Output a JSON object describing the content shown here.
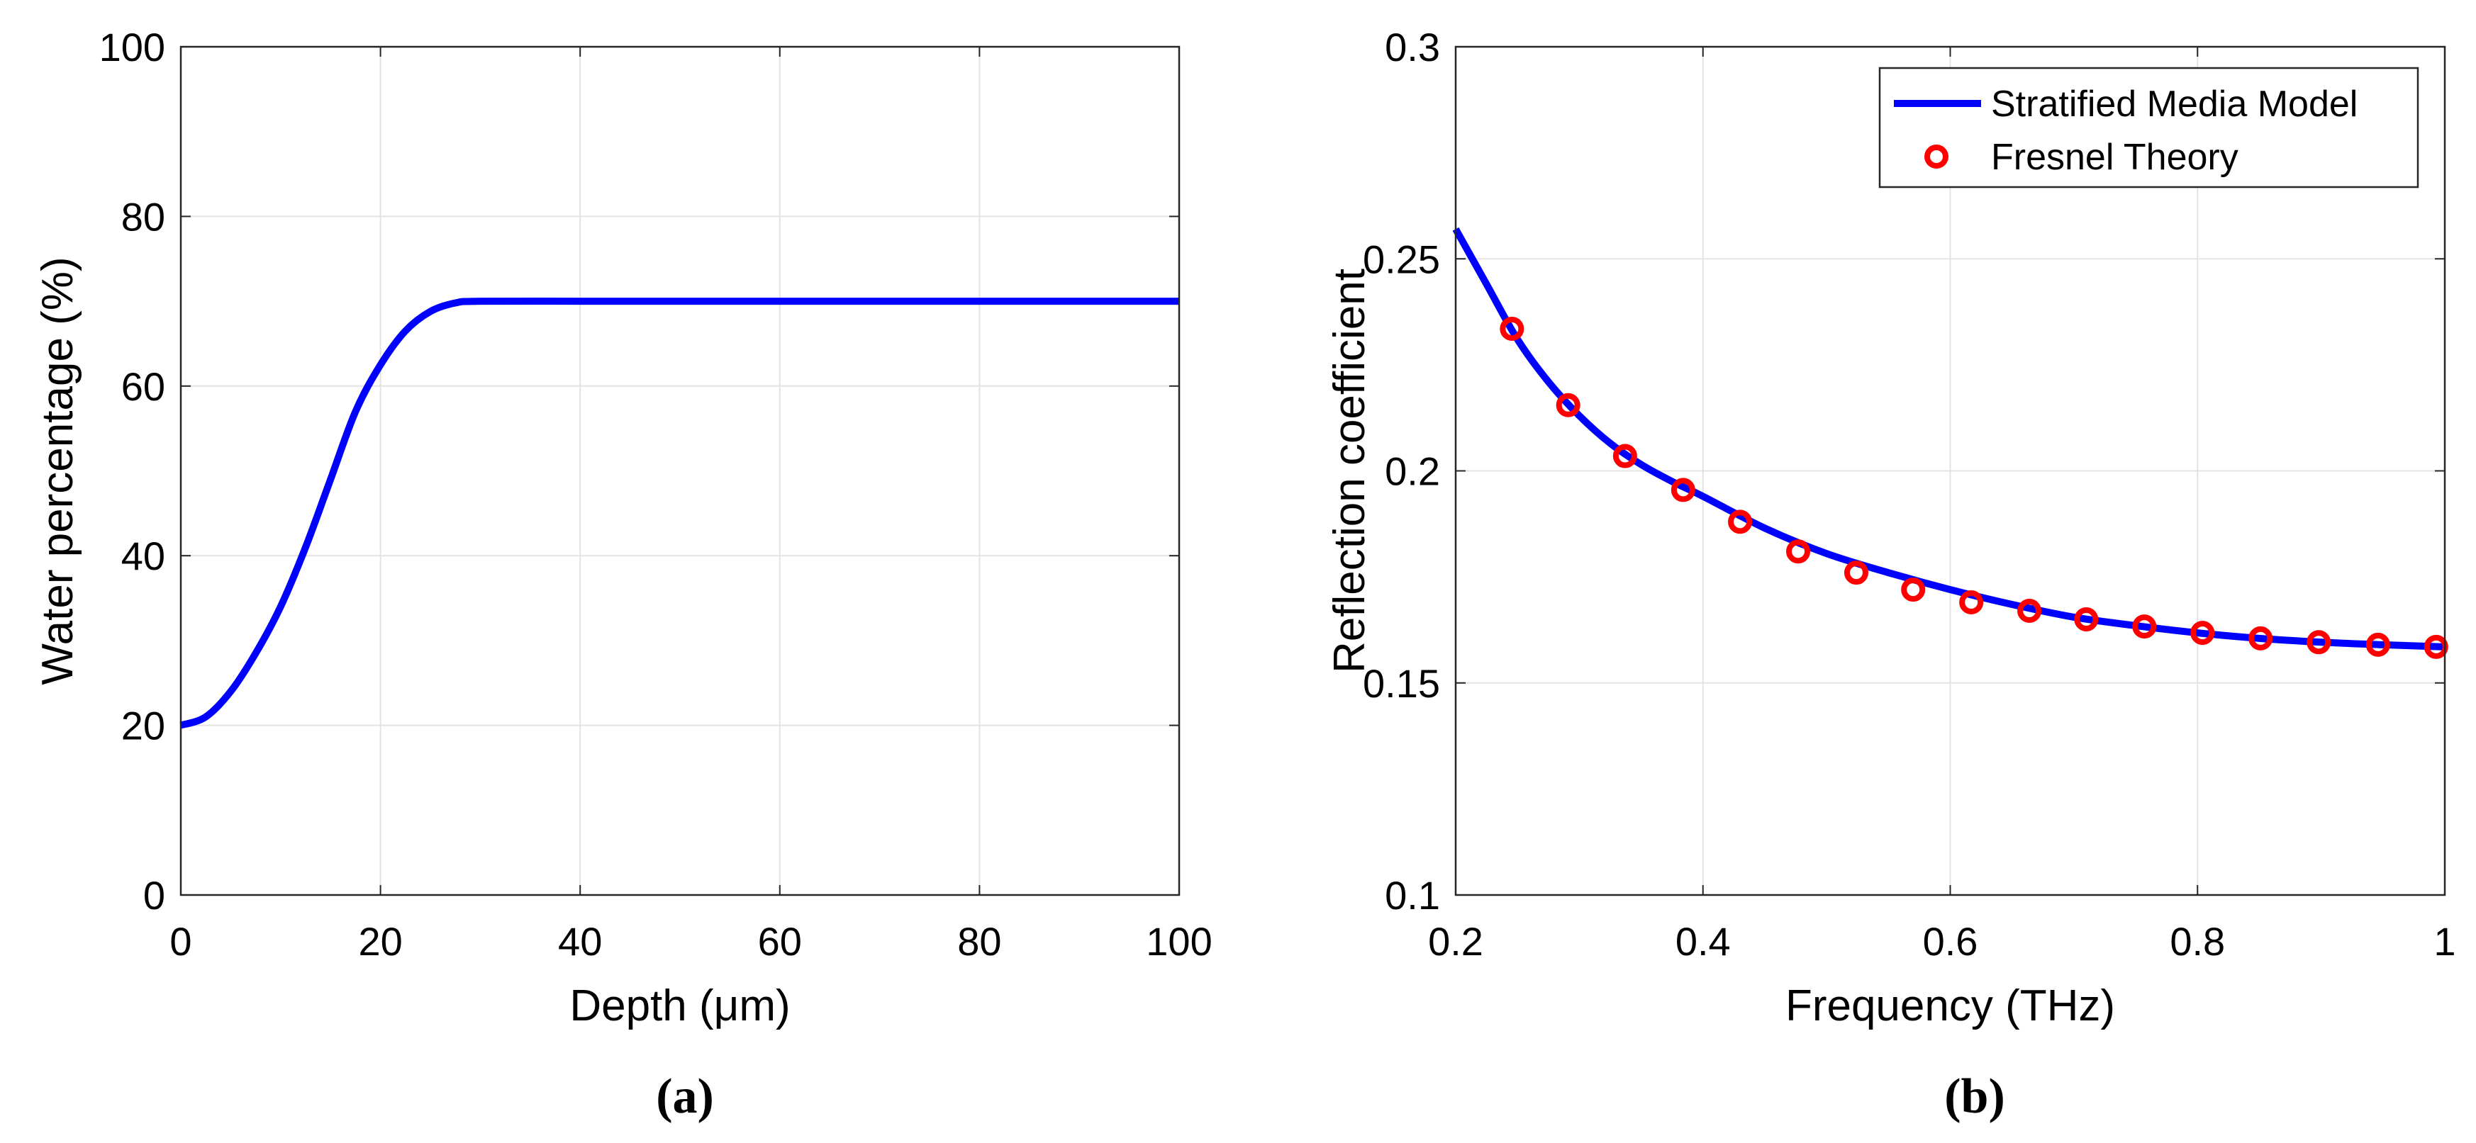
{
  "chart_data": [
    {
      "type": "line",
      "panel_label": "(a)",
      "title": "",
      "xlabel": "Depth (μm)",
      "ylabel": "Water percentage (%)",
      "xlim": [
        0,
        100
      ],
      "ylim": [
        0,
        100
      ],
      "xticks": [
        0,
        20,
        40,
        60,
        80,
        100
      ],
      "yticks": [
        0,
        20,
        40,
        60,
        80,
        100
      ],
      "xtick_labels": [
        "0",
        "20",
        "40",
        "60",
        "80",
        "100"
      ],
      "ytick_labels": [
        "0",
        "20",
        "40",
        "60",
        "80",
        "100"
      ],
      "grid": true,
      "series": [
        {
          "name": "Water percentage",
          "color": "#0000ff",
          "x": [
            0,
            2.5,
            5,
            7.5,
            10,
            12.5,
            15,
            17.5,
            20,
            22.5,
            25,
            27.5,
            30,
            40,
            50,
            60,
            70,
            80,
            90,
            100
          ],
          "y": [
            20,
            21,
            24,
            28.5,
            34,
            41,
            49,
            57,
            62.5,
            66.5,
            68.8,
            69.8,
            70,
            70,
            70,
            70,
            70,
            70,
            70,
            70
          ]
        }
      ]
    },
    {
      "type": "line",
      "panel_label": "(b)",
      "title": "",
      "xlabel": "Frequency (THz)",
      "ylabel": "Reflection coefficient",
      "xlim": [
        0.2,
        1
      ],
      "ylim": [
        0.1,
        0.3
      ],
      "xticks": [
        0.2,
        0.4,
        0.6,
        0.8,
        1
      ],
      "yticks": [
        0.1,
        0.15,
        0.2,
        0.25,
        0.3
      ],
      "xtick_labels": [
        "0.2",
        "0.4",
        "0.6",
        "0.8",
        "1"
      ],
      "ytick_labels": [
        "0.1",
        "0.15",
        "0.2",
        "0.25",
        "0.3"
      ],
      "grid": true,
      "legend_position": "top-right",
      "series": [
        {
          "name": "Stratified Media Model",
          "style": "line",
          "color": "#0000ff",
          "x": [
            0.2,
            0.225,
            0.25,
            0.275,
            0.3,
            0.325,
            0.35,
            0.375,
            0.4,
            0.45,
            0.5,
            0.55,
            0.6,
            0.65,
            0.7,
            0.75,
            0.8,
            0.85,
            0.9,
            0.95,
            1.0
          ],
          "y": [
            0.257,
            0.244,
            0.231,
            0.221,
            0.213,
            0.2065,
            0.2015,
            0.1975,
            0.194,
            0.1865,
            0.1805,
            0.176,
            0.172,
            0.1685,
            0.1655,
            0.1635,
            0.1618,
            0.1605,
            0.1596,
            0.159,
            0.1585
          ]
        },
        {
          "name": "Fresnel Theory",
          "style": "markers",
          "marker": "circle",
          "color": "#ff0000",
          "x": [
            0.2455,
            0.291,
            0.337,
            0.384,
            0.43,
            0.477,
            0.524,
            0.57,
            0.617,
            0.664,
            0.71,
            0.757,
            0.804,
            0.851,
            0.898,
            0.946,
            0.993
          ],
          "y": [
            0.2335,
            0.2155,
            0.2035,
            0.1955,
            0.188,
            0.181,
            0.176,
            0.172,
            0.169,
            0.167,
            0.165,
            0.1633,
            0.1618,
            0.1605,
            0.1596,
            0.159,
            0.1585
          ]
        }
      ]
    }
  ]
}
